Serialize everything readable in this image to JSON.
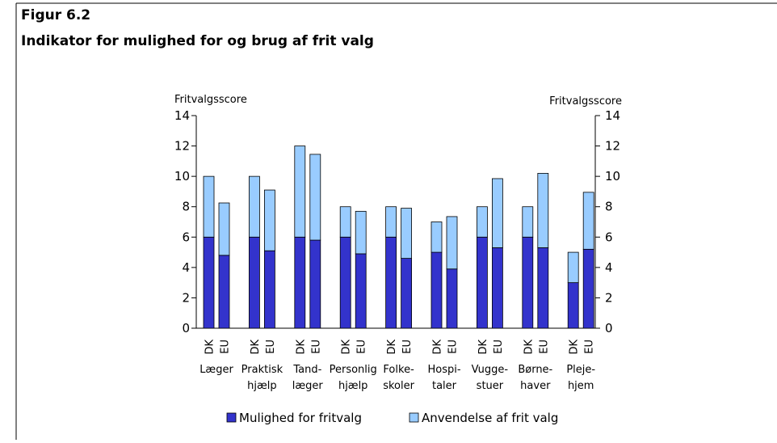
{
  "header": {
    "figure": "Figur 6.2",
    "title": "Indikator for mulighed for og brug af frit valg"
  },
  "chart_data": {
    "type": "grouped_stacked_bar",
    "ylabel": "Fritvalgsscore",
    "y2label": "Fritvalgsscore",
    "ylim": [
      0,
      14
    ],
    "yticks": [
      0,
      2,
      4,
      6,
      8,
      10,
      12,
      14
    ],
    "y2lim": [
      0,
      14
    ],
    "y2ticks": [
      0,
      2,
      4,
      6,
      8,
      10,
      12,
      14
    ],
    "subcategories": [
      "DK",
      "EU"
    ],
    "categories": [
      [
        "Læger"
      ],
      [
        "Praktisk",
        "hjælp"
      ],
      [
        "Tand-",
        "læger"
      ],
      [
        "Personlig",
        "hjælp"
      ],
      [
        "Folke-",
        "skoler"
      ],
      [
        "Hospi-",
        "taler"
      ],
      [
        "Vugge-",
        "stuer"
      ],
      [
        "Børne-",
        "haver"
      ],
      [
        "Pleje-",
        "hjem"
      ]
    ],
    "series": [
      {
        "name": "Mulighed for fritvalg",
        "color": "#3333cc",
        "values": [
          [
            6,
            4.8
          ],
          [
            6,
            5.1
          ],
          [
            6,
            5.8
          ],
          [
            6,
            4.9
          ],
          [
            6,
            4.6
          ],
          [
            5,
            3.9
          ],
          [
            6,
            5.3
          ],
          [
            6,
            5.3
          ],
          [
            3,
            5.2
          ]
        ]
      },
      {
        "name": "Anvendelse af frit valg",
        "color": "#99ccff",
        "values": [
          [
            4,
            3.45
          ],
          [
            4,
            4.0
          ],
          [
            6,
            5.65
          ],
          [
            2,
            2.8
          ],
          [
            2,
            3.3
          ],
          [
            2,
            3.45
          ],
          [
            2,
            4.55
          ],
          [
            2,
            4.9
          ],
          [
            2,
            3.75
          ]
        ]
      }
    ],
    "legend": "bottom"
  }
}
